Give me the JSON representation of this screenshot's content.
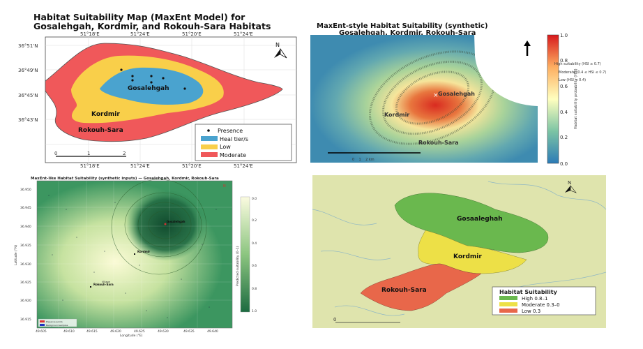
{
  "panel1": {
    "title_line1": "Habitat Suitability Map (MaxEnt Model) for",
    "title_line2": "Gosalehgah, Kordmir, and Rokouh-Sara Habitats",
    "top_ticks": [
      "51°18'E",
      "51°24'E",
      "51°20'E",
      "51°24'E"
    ],
    "bottom_ticks": [
      "51°18'E",
      "51°24'E",
      "51°20'E",
      "51°24'E"
    ],
    "left_ticks": [
      "36°51'N",
      "36°49'N",
      "36°45'N",
      "36°43'N"
    ],
    "north": "N",
    "regions": {
      "inner": "Gosalehgah",
      "middle": "Kordmir",
      "outer": "Rokouh-Sara"
    },
    "scale": [
      "0",
      "1",
      "2"
    ],
    "legend": [
      {
        "label": "Presence",
        "symbol": "dot",
        "color": "#111111"
      },
      {
        "label": "Heal tier/s",
        "color": "#4aa3cf"
      },
      {
        "label": "Low",
        "color": "#f9cf4a"
      },
      {
        "label": "Moderate",
        "color": "#f0585a"
      }
    ]
  },
  "panel2": {
    "title_line1": "MaxEnt-style Habitat Suitability (synthetic)",
    "title_line2": "Gosalehgah, Kordmir, Rokouh-Sara",
    "labels": [
      "Gosalehgah",
      "Kordmir",
      "Rokouh-Sara"
    ],
    "scale_text": "0    1    2 km",
    "colorbar_label": "Habitat suitability probability (HSI)",
    "colorbar_ticks": [
      "1.0",
      "0.8",
      "0.6",
      "0.4",
      "0.2",
      "0.0"
    ],
    "legend": [
      "High suitability (HSI ≥ 0.7)",
      "Moderate (0.4 ≤ HSI ≤ 0.7)",
      "Low (HSI < 0.4)"
    ]
  },
  "panel3": {
    "title": "MaxEnt-like Habitat Suitability (synthetic inputs) — Gosalehgah, Kordmir, Rokouh-Sara",
    "xlabel": "Longitude (°E)",
    "ylabel": "Latitude (°N)",
    "x_ticks": [
      "49.605",
      "49.610",
      "49.615",
      "49.620",
      "49.625",
      "49.630",
      "49.635",
      "49.640"
    ],
    "y_ticks": [
      "36.950",
      "36.945",
      "36.940",
      "36.935",
      "36.930",
      "36.925",
      "36.920",
      "36.915"
    ],
    "labels": [
      "Gosalehgah",
      "Kordmir",
      "Rokouh-Sara",
      "Village"
    ],
    "north": "N",
    "colorbar_label": "Predicted suitability (0–1)",
    "colorbar_ticks": [
      "0.0",
      "0.2",
      "0.4",
      "0.6",
      "0.8",
      "1.0"
    ],
    "legend": [
      {
        "label": "Presence points",
        "color": "#e03030"
      },
      {
        "label": "Background samples",
        "color": "#2030c0"
      }
    ]
  },
  "panel4": {
    "regions": [
      "Gosaaleghah",
      "Kordmir",
      "Rokouh-Sara"
    ],
    "north": "N",
    "scale": "0",
    "legend_title": "Habitat Suitability",
    "legend": [
      {
        "label": "High 0.8–1",
        "color": "#6ab84e"
      },
      {
        "label": "Moderate 0.3–0",
        "color": "#ede047"
      },
      {
        "label": "Low 0.3",
        "color": "#e8674a"
      }
    ]
  }
}
